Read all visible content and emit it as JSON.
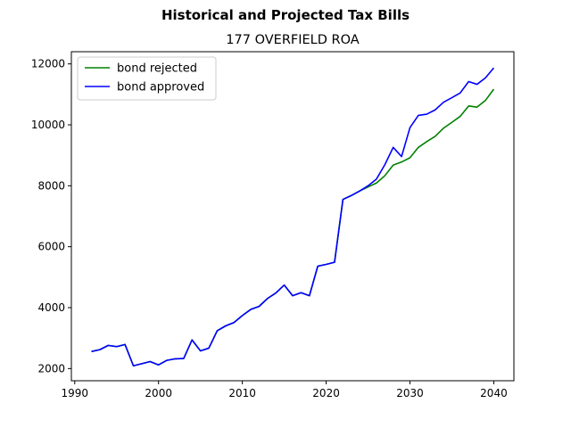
{
  "chart_data": {
    "type": "line",
    "suptitle": "Historical and Projected Tax Bills",
    "title": "177 OVERFIELD ROA",
    "xlabel": "",
    "ylabel": "",
    "xlim": [
      1989.6,
      2042.4
    ],
    "ylim": [
      1600,
      12400
    ],
    "xticks": [
      1990,
      2000,
      2010,
      2020,
      2030,
      2040
    ],
    "yticks": [
      2000,
      4000,
      6000,
      8000,
      10000,
      12000
    ],
    "grid": false,
    "legend_position": "top-left",
    "series": [
      {
        "name": "bond rejected",
        "color": "#008000",
        "x": [
          1992,
          1993,
          1994,
          1995,
          1996,
          1997,
          1998,
          1999,
          2000,
          2001,
          2002,
          2003,
          2004,
          2005,
          2006,
          2007,
          2008,
          2009,
          2010,
          2011,
          2012,
          2013,
          2014,
          2015,
          2016,
          2017,
          2018,
          2019,
          2020,
          2021,
          2022,
          2023,
          2024,
          2025,
          2026,
          2027,
          2028,
          2029,
          2030,
          2031,
          2032,
          2033,
          2034,
          2035,
          2036,
          2037,
          2038,
          2039,
          2040
        ],
        "values": [
          2560,
          2620,
          2760,
          2720,
          2790,
          2090,
          2160,
          2230,
          2120,
          2270,
          2320,
          2330,
          2940,
          2580,
          2670,
          3240,
          3400,
          3510,
          3740,
          3940,
          4040,
          4300,
          4480,
          4740,
          4390,
          4490,
          4390,
          5360,
          5420,
          5490,
          7550,
          7680,
          7830,
          7960,
          8090,
          8330,
          8680,
          8780,
          8920,
          9260,
          9450,
          9620,
          9890,
          10080,
          10280,
          10620,
          10580,
          10800,
          11170
        ]
      },
      {
        "name": "bond approved",
        "color": "#0000ff",
        "x": [
          1992,
          1993,
          1994,
          1995,
          1996,
          1997,
          1998,
          1999,
          2000,
          2001,
          2002,
          2003,
          2004,
          2005,
          2006,
          2007,
          2008,
          2009,
          2010,
          2011,
          2012,
          2013,
          2014,
          2015,
          2016,
          2017,
          2018,
          2019,
          2020,
          2021,
          2022,
          2023,
          2024,
          2025,
          2026,
          2027,
          2028,
          2029,
          2030,
          2031,
          2032,
          2033,
          2034,
          2035,
          2036,
          2037,
          2038,
          2039,
          2040
        ],
        "values": [
          2560,
          2620,
          2760,
          2720,
          2790,
          2090,
          2160,
          2230,
          2120,
          2270,
          2320,
          2330,
          2940,
          2580,
          2670,
          3240,
          3400,
          3510,
          3740,
          3940,
          4040,
          4300,
          4480,
          4740,
          4390,
          4490,
          4390,
          5360,
          5420,
          5490,
          7550,
          7680,
          7830,
          8000,
          8220,
          8690,
          9260,
          8960,
          9910,
          10310,
          10350,
          10490,
          10740,
          10890,
          11050,
          11420,
          11330,
          11540,
          11870
        ]
      }
    ]
  }
}
